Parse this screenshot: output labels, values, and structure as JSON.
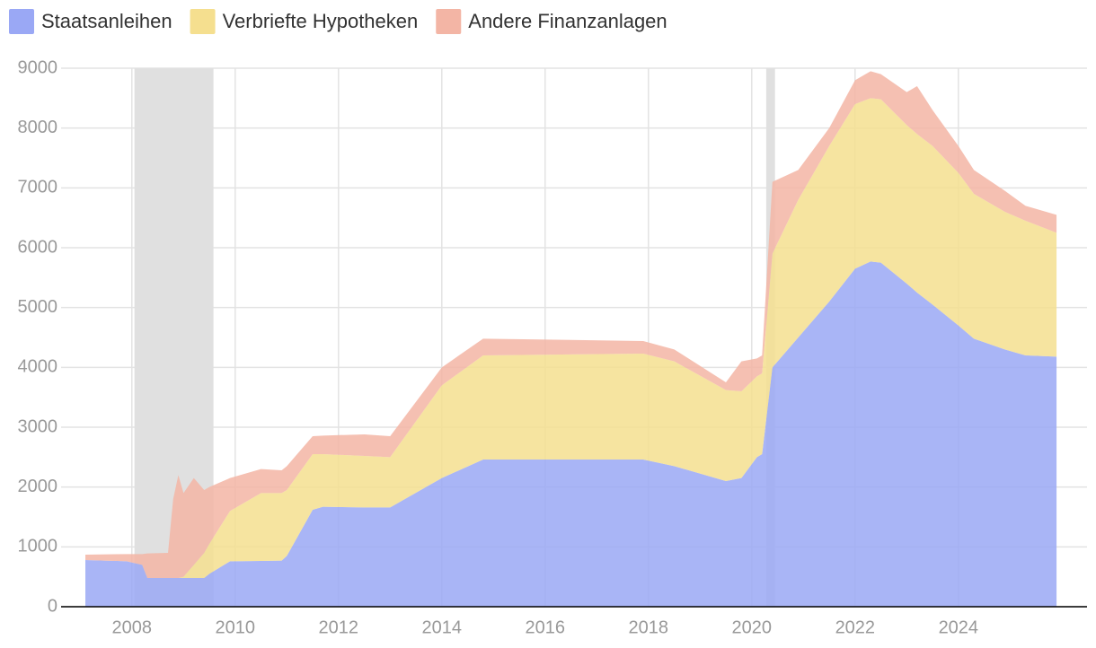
{
  "chart_data": {
    "type": "stacked_area",
    "x": [
      2007.1,
      2007.9,
      2008.2,
      2008.3,
      2008.7,
      2008.8,
      2008.9,
      2009.0,
      2009.2,
      2009.4,
      2009.5,
      2009.9,
      2010.5,
      2010.9,
      2011.0,
      2011.5,
      2011.7,
      2012.5,
      2013.0,
      2014.0,
      2014.8,
      2017.9,
      2018.5,
      2019.5,
      2019.8,
      2020.1,
      2020.2,
      2020.4,
      2020.9,
      2021.5,
      2022.0,
      2022.3,
      2022.5,
      2023.0,
      2023.2,
      2023.5,
      2024.0,
      2024.3,
      2024.9,
      2025.3,
      2025.9
    ],
    "series": [
      {
        "name": "Staatsanleihen",
        "color": "#9aa8f5",
        "values": [
          780,
          760,
          700,
          480,
          480,
          480,
          480,
          480,
          480,
          480,
          550,
          760,
          765,
          770,
          850,
          1620,
          1670,
          1660,
          1660,
          2150,
          2460,
          2460,
          2350,
          2100,
          2150,
          2500,
          2550,
          4000,
          4500,
          5100,
          5650,
          5770,
          5750,
          5400,
          5250,
          5050,
          4700,
          4480,
          4300,
          4200,
          4180
        ]
      },
      {
        "name": "Verbriefte Hypotheken",
        "color": "#f5df8f",
        "values": [
          0,
          0,
          0,
          0,
          0,
          0,
          0,
          20,
          220,
          420,
          500,
          840,
          1135,
          1130,
          1100,
          930,
          880,
          860,
          840,
          1550,
          1740,
          1770,
          1750,
          1520,
          1450,
          1350,
          1350,
          1900,
          2300,
          2600,
          2750,
          2730,
          2730,
          2650,
          2650,
          2650,
          2550,
          2420,
          2300,
          2250,
          2070
        ]
      },
      {
        "name": "Andere Finanzanlagen",
        "color": "#f3b5a5",
        "values": [
          90,
          120,
          180,
          410,
          420,
          1320,
          1720,
          1400,
          1450,
          1050,
          950,
          550,
          400,
          380,
          400,
          300,
          310,
          360,
          350,
          300,
          280,
          210,
          200,
          130,
          500,
          300,
          300,
          1200,
          500,
          300,
          400,
          450,
          420,
          550,
          800,
          600,
          450,
          400,
          350,
          250,
          300
        ]
      }
    ],
    "shaded_regions": [
      [
        2008.05,
        2009.58
      ],
      [
        2020.28,
        2020.45
      ]
    ],
    "shade_color": "#e0e0e0",
    "xlim": [
      2006.63,
      2026.49
    ],
    "xticks": [
      2008,
      2010,
      2012,
      2014,
      2016,
      2018,
      2020,
      2022,
      2024
    ],
    "ylim": [
      0,
      9000
    ],
    "yticks": [
      0,
      1000,
      2000,
      3000,
      4000,
      5000,
      6000,
      7000,
      8000,
      9000
    ],
    "grid": true,
    "legend": "top-left"
  }
}
